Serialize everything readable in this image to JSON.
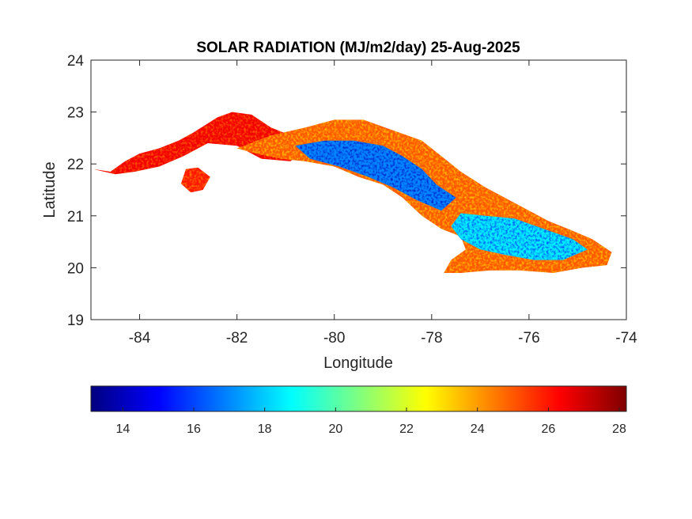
{
  "chart_data": {
    "type": "heatmap",
    "title": "SOLAR RADIATION (MJ/m2/day) 25-Aug-2025",
    "xlabel": "Longitude",
    "ylabel": "Latitude",
    "xlim": [
      -85,
      -74
    ],
    "ylim": [
      19,
      24
    ],
    "xticks": [
      -84,
      -82,
      -80,
      -78,
      -76,
      -74
    ],
    "yticks": [
      19,
      20,
      21,
      22,
      23,
      24
    ],
    "grid": false,
    "colormap": "jet",
    "colorbar": {
      "location": "southoutside",
      "range": [
        13.1,
        28.2
      ],
      "ticks": [
        14,
        16,
        18,
        20,
        22,
        24,
        26,
        28
      ],
      "stops": [
        "#00007f",
        "#0000ff",
        "#007fff",
        "#00ffff",
        "#7fff7f",
        "#ffff00",
        "#ff7f00",
        "#ff0000",
        "#7f0000"
      ]
    },
    "regions": [
      {
        "name": "",
        "lon_lat": [
          [
            -84.95,
            21.9
          ],
          [
            -84.6,
            21.85
          ],
          [
            -84.3,
            22.05
          ],
          [
            -84.0,
            22.2
          ],
          [
            -83.6,
            22.3
          ],
          [
            -83.2,
            22.45
          ],
          [
            -82.9,
            22.6
          ],
          [
            -82.4,
            22.9
          ],
          [
            -82.1,
            23.0
          ],
          [
            -81.7,
            22.95
          ],
          [
            -81.3,
            22.7
          ],
          [
            -80.9,
            22.55
          ],
          [
            -80.6,
            22.3
          ],
          [
            -80.9,
            22.05
          ],
          [
            -81.5,
            22.1
          ],
          [
            -82.0,
            22.35
          ],
          [
            -82.6,
            22.4
          ],
          [
            -83.1,
            22.15
          ],
          [
            -83.6,
            21.95
          ],
          [
            -84.1,
            21.85
          ],
          [
            -84.5,
            21.8
          ]
        ],
        "mean_value": 26.5
      },
      {
        "name": "",
        "lon_lat": [
          [
            -82.0,
            22.3
          ],
          [
            -81.3,
            22.55
          ],
          [
            -80.6,
            22.7
          ],
          [
            -80.0,
            22.85
          ],
          [
            -79.4,
            22.85
          ],
          [
            -78.8,
            22.65
          ],
          [
            -78.2,
            22.45
          ],
          [
            -77.8,
            22.15
          ],
          [
            -77.4,
            21.85
          ],
          [
            -76.9,
            21.55
          ],
          [
            -76.4,
            21.3
          ],
          [
            -76.0,
            21.1
          ],
          [
            -75.6,
            20.9
          ],
          [
            -75.2,
            20.75
          ],
          [
            -74.7,
            20.55
          ],
          [
            -74.3,
            20.3
          ],
          [
            -74.4,
            20.05
          ],
          [
            -74.9,
            20.0
          ],
          [
            -75.5,
            19.9
          ],
          [
            -76.2,
            19.95
          ],
          [
            -76.8,
            19.95
          ],
          [
            -77.4,
            19.9
          ],
          [
            -77.75,
            19.9
          ],
          [
            -77.6,
            20.15
          ],
          [
            -77.3,
            20.35
          ],
          [
            -77.4,
            20.6
          ],
          [
            -77.8,
            20.75
          ],
          [
            -78.2,
            21.0
          ],
          [
            -78.6,
            21.35
          ],
          [
            -79.0,
            21.6
          ],
          [
            -79.5,
            21.75
          ],
          [
            -80.0,
            21.95
          ],
          [
            -80.6,
            22.05
          ],
          [
            -81.1,
            22.1
          ],
          [
            -81.6,
            22.2
          ]
        ],
        "mean_value": 25.0
      },
      {
        "name": "",
        "lon_lat": [
          [
            -80.8,
            22.35
          ],
          [
            -80.2,
            22.45
          ],
          [
            -79.6,
            22.45
          ],
          [
            -79.0,
            22.35
          ],
          [
            -78.6,
            22.15
          ],
          [
            -78.2,
            21.9
          ],
          [
            -77.9,
            21.6
          ],
          [
            -77.5,
            21.35
          ],
          [
            -77.8,
            21.1
          ],
          [
            -78.3,
            21.3
          ],
          [
            -78.8,
            21.55
          ],
          [
            -79.3,
            21.75
          ],
          [
            -79.9,
            21.95
          ],
          [
            -80.5,
            22.1
          ]
        ],
        "mean_value": 17.0
      },
      {
        "name": "",
        "lon_lat": [
          [
            -77.4,
            21.05
          ],
          [
            -76.9,
            21.0
          ],
          [
            -76.3,
            20.95
          ],
          [
            -75.7,
            20.75
          ],
          [
            -75.1,
            20.55
          ],
          [
            -74.8,
            20.35
          ],
          [
            -75.3,
            20.15
          ],
          [
            -75.9,
            20.15
          ],
          [
            -76.5,
            20.25
          ],
          [
            -77.0,
            20.35
          ],
          [
            -77.4,
            20.55
          ],
          [
            -77.6,
            20.8
          ]
        ],
        "mean_value": 18.5
      },
      {
        "name": "",
        "lon_lat": [
          [
            -83.05,
            21.9
          ],
          [
            -82.8,
            21.93
          ],
          [
            -82.55,
            21.75
          ],
          [
            -82.7,
            21.5
          ],
          [
            -82.95,
            21.45
          ],
          [
            -83.15,
            21.62
          ]
        ],
        "mean_value": 26.0
      }
    ]
  }
}
